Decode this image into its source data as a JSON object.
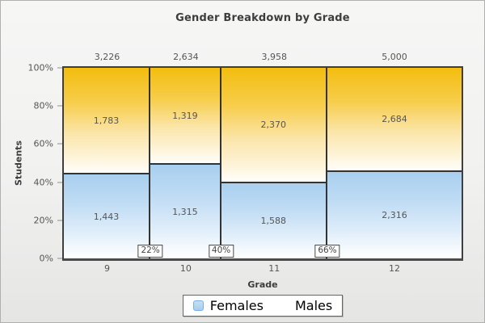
{
  "title": "Gender Breakdown by Grade",
  "axes": {
    "y_title": "Students",
    "x_title": "Grade",
    "y_ticks": [
      "0%",
      "20%",
      "40%",
      "60%",
      "80%",
      "100%"
    ]
  },
  "legend": {
    "items": [
      {
        "label": "Females",
        "color": "#A5CDEE",
        "border_color": "#7BB0DC"
      },
      {
        "label": "Males",
        "color": "#EFB703",
        "border_color": "#CF9E00"
      }
    ]
  },
  "chart_data": {
    "type": "mosaic",
    "title": "Gender Breakdown by Grade",
    "xlabel": "Grade",
    "ylabel": "Students",
    "ylim": [
      0,
      100
    ],
    "y_tick_percents": [
      0,
      20,
      40,
      60,
      80,
      100
    ],
    "categories": [
      "9",
      "10",
      "11",
      "12"
    ],
    "totals": [
      3226,
      2634,
      3958,
      5000
    ],
    "series": [
      {
        "name": "Females",
        "color": "#A8CFEF",
        "values": [
          1443,
          1315,
          1588,
          2316
        ]
      },
      {
        "name": "Males",
        "color": "#F3BD0F",
        "values": [
          1783,
          1319,
          2370,
          2684
        ]
      }
    ],
    "cumulative_labels": [
      "22%",
      "40%",
      "66%"
    ],
    "grid": false,
    "legend_position": "bottom",
    "column_widths_note": "column width proportional to grade total; cumulative % badges shown at column dividers"
  }
}
